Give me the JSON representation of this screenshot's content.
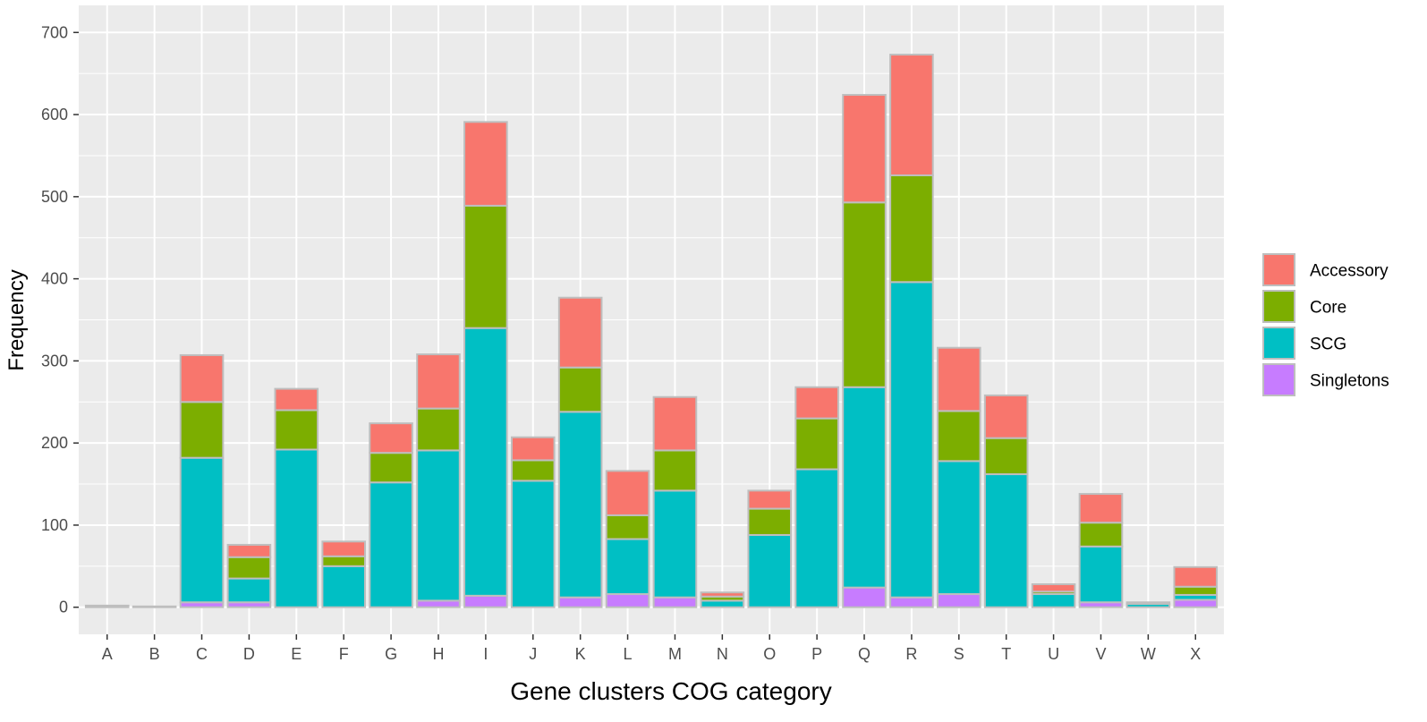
{
  "chart_data": {
    "type": "bar",
    "stacked": true,
    "title": "",
    "xlabel": "Gene clusters COG category",
    "ylabel": "Frequency",
    "ylim": [
      -33,
      733
    ],
    "yticks": [
      0,
      100,
      200,
      300,
      400,
      500,
      600,
      700
    ],
    "grid": true,
    "legend_position": "right",
    "categories": [
      "A",
      "B",
      "C",
      "D",
      "E",
      "F",
      "G",
      "H",
      "I",
      "J",
      "K",
      "L",
      "M",
      "N",
      "O",
      "P",
      "Q",
      "R",
      "S",
      "T",
      "U",
      "V",
      "W",
      "X"
    ],
    "series": [
      {
        "name": "Singletons",
        "color": "#C77CFF",
        "values": [
          0,
          0,
          6,
          6,
          0,
          0,
          0,
          8,
          14,
          0,
          12,
          16,
          12,
          0,
          0,
          0,
          24,
          12,
          16,
          0,
          0,
          6,
          0,
          9
        ]
      },
      {
        "name": "SCG",
        "color": "#00BFC4",
        "values": [
          2,
          1,
          176,
          29,
          192,
          50,
          152,
          183,
          326,
          154,
          226,
          67,
          130,
          8,
          88,
          168,
          244,
          384,
          162,
          162,
          16,
          68,
          4,
          6
        ]
      },
      {
        "name": "Core",
        "color": "#7CAE00",
        "values": [
          0,
          0,
          68,
          26,
          48,
          12,
          36,
          51,
          149,
          25,
          54,
          29,
          49,
          5,
          32,
          62,
          225,
          130,
          61,
          44,
          3,
          29,
          0,
          10
        ]
      },
      {
        "name": "Accessory",
        "color": "#F8766D",
        "values": [
          0,
          0,
          57,
          15,
          26,
          18,
          36,
          66,
          102,
          28,
          85,
          54,
          65,
          5,
          22,
          38,
          131,
          147,
          77,
          52,
          9,
          35,
          2,
          24
        ]
      }
    ],
    "legend_order": [
      "Accessory",
      "Core",
      "SCG",
      "Singletons"
    ],
    "panel_background": "#EBEBEB",
    "bar_outline": "#BEBEBE"
  }
}
